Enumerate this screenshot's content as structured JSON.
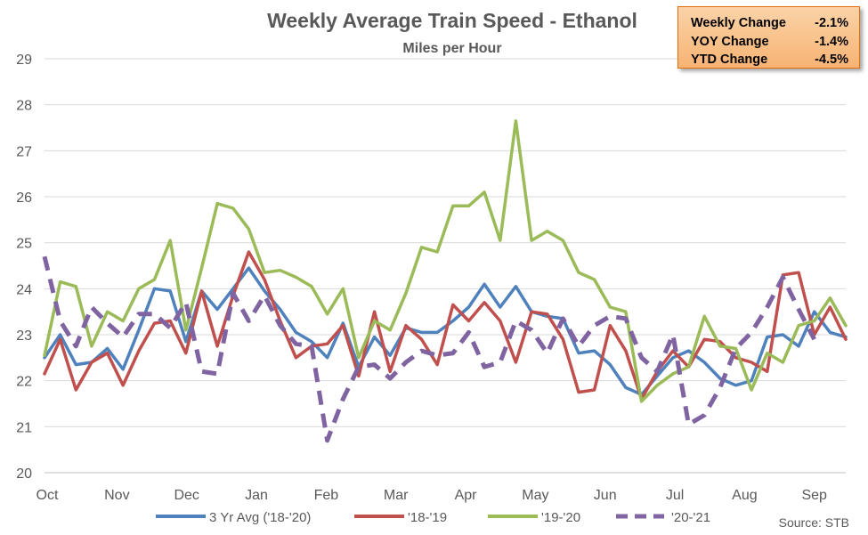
{
  "chart_data": {
    "type": "line",
    "title": "Weekly Average Train Speed - Ethanol",
    "subtitle": "Miles per Hour",
    "ylim": [
      20,
      29
    ],
    "yticks": [
      20,
      21,
      22,
      23,
      24,
      25,
      26,
      27,
      28,
      29
    ],
    "grid": true,
    "legend_position": "bottom",
    "source": "Source:  STB",
    "x_tick_labels": [
      "Oct",
      "Nov",
      "Dec",
      "Jan",
      "Feb",
      "Mar",
      "Apr",
      "May",
      "Jun",
      "Jul",
      "Aug",
      "Sep"
    ],
    "weeks": 52,
    "series": [
      {
        "name": "3 Yr Avg ('18-'20)",
        "color": "#4f81bd",
        "dash": false,
        "values": [
          22.5,
          23.0,
          22.35,
          22.4,
          22.7,
          22.25,
          23.1,
          24.0,
          23.95,
          22.85,
          23.95,
          23.55,
          24.0,
          24.45,
          23.95,
          23.55,
          23.05,
          22.85,
          22.5,
          23.25,
          22.3,
          22.95,
          22.55,
          23.15,
          23.05,
          23.05,
          23.3,
          23.6,
          24.1,
          23.6,
          24.05,
          23.5,
          23.4,
          23.35,
          22.6,
          22.65,
          22.35,
          21.85,
          21.7,
          22.1,
          22.5,
          22.65,
          22.4,
          22.05,
          21.9,
          22.0,
          22.95,
          23.0,
          22.75,
          23.5,
          23.05,
          22.95
        ]
      },
      {
        "name": "'18-'19",
        "color": "#c0504d",
        "dash": false,
        "values": [
          22.15,
          22.9,
          21.8,
          22.4,
          22.6,
          21.9,
          22.65,
          23.25,
          23.3,
          22.6,
          23.95,
          22.75,
          23.85,
          24.8,
          24.2,
          23.3,
          22.5,
          22.75,
          22.8,
          23.2,
          22.1,
          23.5,
          22.2,
          23.2,
          22.9,
          22.35,
          23.65,
          23.3,
          23.7,
          23.3,
          22.4,
          23.5,
          23.45,
          22.9,
          21.75,
          21.8,
          23.2,
          22.65,
          21.6,
          22.2,
          22.65,
          22.3,
          22.9,
          22.85,
          22.5,
          22.4,
          22.2,
          24.3,
          24.35,
          23.0,
          23.6,
          22.9
        ]
      },
      {
        "name": "'19-'20",
        "color": "#9bbb59",
        "dash": false,
        "values": [
          22.55,
          24.15,
          24.05,
          22.75,
          23.5,
          23.3,
          24.0,
          24.2,
          25.05,
          23.1,
          24.45,
          25.85,
          25.75,
          25.3,
          24.35,
          24.4,
          24.25,
          24.05,
          23.45,
          24.0,
          22.5,
          23.3,
          23.1,
          23.9,
          24.9,
          24.8,
          25.8,
          25.8,
          26.1,
          25.05,
          27.65,
          25.05,
          25.25,
          25.05,
          24.35,
          24.2,
          23.6,
          23.5,
          21.55,
          21.9,
          22.15,
          22.3,
          23.4,
          22.75,
          22.7,
          21.8,
          22.6,
          22.4,
          23.2,
          23.3,
          23.8,
          23.2
        ]
      },
      {
        "name": "'20-'21",
        "color": "#8064a2",
        "dash": true,
        "values": [
          24.7,
          23.3,
          22.75,
          23.6,
          23.25,
          22.95,
          23.45,
          23.45,
          23.15,
          23.7,
          22.2,
          22.15,
          23.9,
          23.3,
          23.85,
          23.2,
          22.8,
          22.75,
          20.7,
          21.6,
          22.3,
          22.35,
          22.05,
          22.4,
          22.65,
          22.55,
          22.6,
          23.05,
          22.3,
          22.4,
          23.3,
          23.1,
          22.6,
          23.35,
          22.75,
          23.2,
          23.4,
          23.35,
          22.5,
          22.2,
          23.0,
          21.05,
          21.25,
          21.85,
          22.7,
          23.05,
          23.6,
          24.25,
          23.55,
          22.9
        ]
      }
    ]
  },
  "changes_box": [
    {
      "label": "Weekly Change",
      "value": "-2.1%"
    },
    {
      "label": "YOY Change",
      "value": "-1.4%"
    },
    {
      "label": "YTD Change",
      "value": "-4.5%"
    }
  ]
}
